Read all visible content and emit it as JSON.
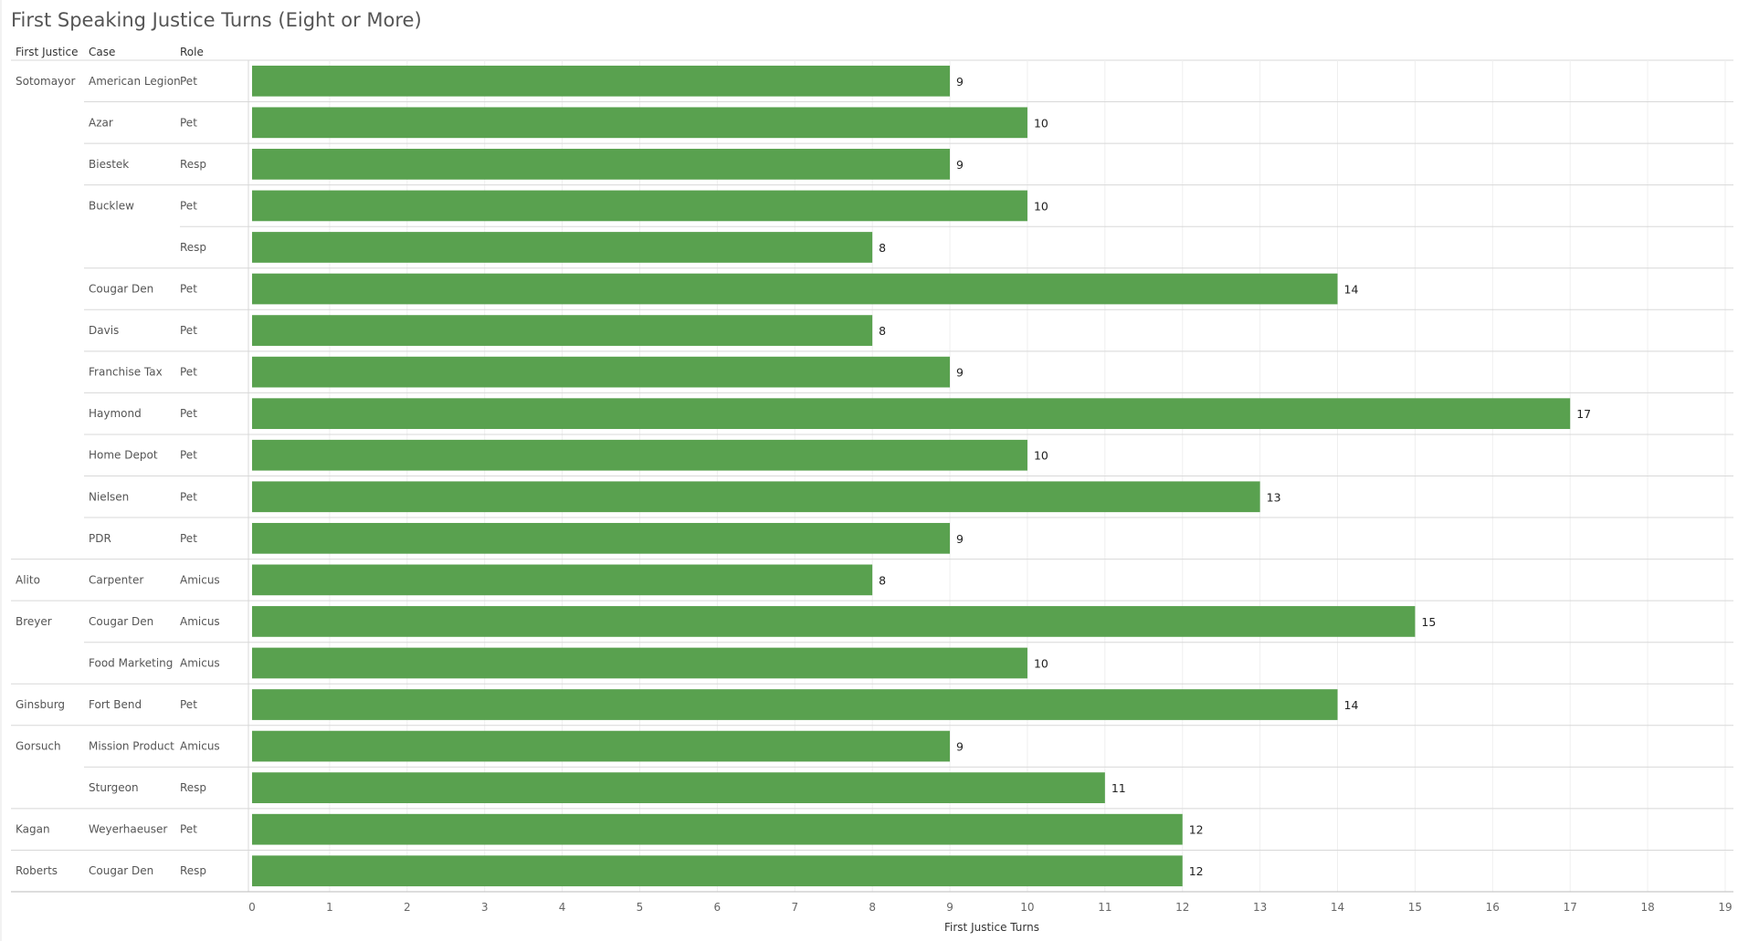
{
  "chart_data": {
    "type": "bar",
    "title": "First Speaking Justice Turns (Eight or More)",
    "columns": [
      "First Justice",
      "Case",
      "Role"
    ],
    "xlabel": "First Justice Turns",
    "xlim": [
      0,
      19
    ],
    "ticks": [
      0,
      1,
      2,
      3,
      4,
      5,
      6,
      7,
      8,
      9,
      10,
      11,
      12,
      13,
      14,
      15,
      16,
      17,
      18,
      19
    ],
    "grid": true,
    "bar_color": "#59a14f",
    "rows": [
      {
        "justice": "Sotomayor",
        "case": "American Legion",
        "role": "Pet",
        "value": 9
      },
      {
        "justice": "",
        "case": "Azar",
        "role": "Pet",
        "value": 10
      },
      {
        "justice": "",
        "case": "Biestek",
        "role": "Resp",
        "value": 9
      },
      {
        "justice": "",
        "case": "Bucklew",
        "role": "Pet",
        "value": 10
      },
      {
        "justice": "",
        "case": "",
        "role": "Resp",
        "value": 8
      },
      {
        "justice": "",
        "case": "Cougar Den",
        "role": "Pet",
        "value": 14
      },
      {
        "justice": "",
        "case": "Davis",
        "role": "Pet",
        "value": 8
      },
      {
        "justice": "",
        "case": "Franchise Tax",
        "role": "Pet",
        "value": 9
      },
      {
        "justice": "",
        "case": "Haymond",
        "role": "Pet",
        "value": 17
      },
      {
        "justice": "",
        "case": "Home Depot",
        "role": "Pet",
        "value": 10
      },
      {
        "justice": "",
        "case": "Nielsen",
        "role": "Pet",
        "value": 13
      },
      {
        "justice": "",
        "case": "PDR",
        "role": "Pet",
        "value": 9
      },
      {
        "justice": "Alito",
        "case": "Carpenter",
        "role": "Amicus",
        "value": 8
      },
      {
        "justice": "Breyer",
        "case": "Cougar Den",
        "role": "Amicus",
        "value": 15
      },
      {
        "justice": "",
        "case": "Food Marketing",
        "role": "Amicus",
        "value": 10
      },
      {
        "justice": "Ginsburg",
        "case": "Fort Bend",
        "role": "Pet",
        "value": 14
      },
      {
        "justice": "Gorsuch",
        "case": "Mission Product",
        "role": "Amicus",
        "value": 9
      },
      {
        "justice": "",
        "case": "Sturgeon",
        "role": "Resp",
        "value": 11
      },
      {
        "justice": "Kagan",
        "case": "Weyerhaeuser",
        "role": "Pet",
        "value": 12
      },
      {
        "justice": "Roberts",
        "case": "Cougar Den",
        "role": "Resp",
        "value": 12
      }
    ]
  }
}
